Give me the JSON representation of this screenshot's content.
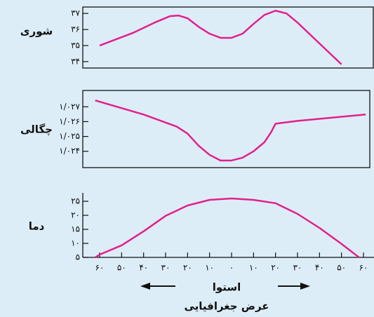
{
  "chart_data": [
    {
      "type": "line",
      "ylabel": "شوری",
      "color": "#e2208c",
      "x": [
        -60,
        -45,
        -35,
        -28,
        -24,
        -20,
        -15,
        -10,
        -5,
        0,
        5,
        10,
        15,
        20,
        25,
        30,
        40,
        50
      ],
      "values": [
        35.0,
        35.78,
        36.43,
        36.83,
        36.87,
        36.7,
        36.17,
        35.74,
        35.48,
        35.48,
        35.74,
        36.35,
        36.91,
        37.17,
        37.0,
        36.43,
        35.13,
        33.83
      ],
      "xlim": [
        -60,
        60
      ],
      "ylim": [
        33.6,
        37.4
      ],
      "yticks": [
        {
          "value": 34,
          "label": "۳۴"
        },
        {
          "value": 35,
          "label": "۳۵"
        },
        {
          "value": 36,
          "label": "۳۶"
        },
        {
          "value": 37,
          "label": "۳۷"
        }
      ]
    },
    {
      "type": "line",
      "ylabel": "چگالی",
      "color": "#e2208c",
      "x": [
        -62,
        -40,
        -25,
        -20,
        -15,
        -10,
        -5,
        0,
        5,
        10,
        15,
        18,
        20,
        30,
        61
      ],
      "values": [
        1.02743,
        1.02648,
        1.02567,
        1.02519,
        1.02438,
        1.02376,
        1.02338,
        1.02338,
        1.02357,
        1.024,
        1.02462,
        1.02529,
        1.02586,
        1.02605,
        1.02648
      ],
      "xlim": [
        -60,
        60
      ],
      "ylim": [
        1.0229,
        1.0281
      ],
      "yticks": [
        {
          "value": 1.024,
          "label": "۱/۰۲۴"
        },
        {
          "value": 1.025,
          "label": "۱/۰۲۵"
        },
        {
          "value": 1.026,
          "label": "۱/۰۲۶"
        },
        {
          "value": 1.027,
          "label": "۱/۰۲۷"
        }
      ]
    },
    {
      "type": "line",
      "ylabel": "دما",
      "xlabel": "عرض جغرافیایی",
      "annotation": "استوا",
      "color": "#e2208c",
      "x": [
        -62,
        -60,
        -50,
        -40,
        -30,
        -20,
        -10,
        0,
        10,
        20,
        30,
        40,
        50,
        58
      ],
      "values": [
        5,
        6,
        9.3,
        14.3,
        19.8,
        23.5,
        25.5,
        26,
        25.5,
        24.3,
        20.5,
        15.5,
        9.8,
        5
      ],
      "xlim": [
        -60,
        60
      ],
      "ylim": [
        5,
        28
      ],
      "yticks": [
        {
          "value": 5,
          "label": "۵"
        },
        {
          "value": 10,
          "label": "۱۰"
        },
        {
          "value": 15,
          "label": "۱۵"
        },
        {
          "value": 20,
          "label": "۲۰"
        },
        {
          "value": 25,
          "label": "۲۵"
        }
      ],
      "xticks": [
        {
          "value": -60,
          "label": "۶۰"
        },
        {
          "value": -50,
          "label": "۵۰"
        },
        {
          "value": -40,
          "label": "۴۰"
        },
        {
          "value": -30,
          "label": "۳۰"
        },
        {
          "value": -20,
          "label": "۲۰"
        },
        {
          "value": -10,
          "label": "۱۰"
        },
        {
          "value": 0,
          "label": "۰"
        },
        {
          "value": 10,
          "label": "۱۰"
        },
        {
          "value": 20,
          "label": "۲۰"
        },
        {
          "value": 30,
          "label": "۳۰"
        },
        {
          "value": 40,
          "label": "۴۰"
        },
        {
          "value": 50,
          "label": "۵۰"
        },
        {
          "value": 60,
          "label": "۶۰"
        }
      ]
    }
  ]
}
